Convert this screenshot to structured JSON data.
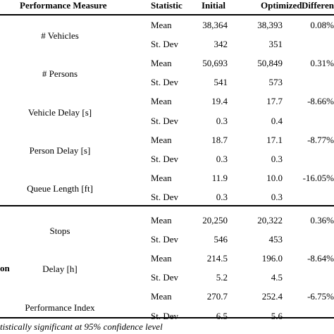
{
  "table": {
    "headers": {
      "group": "",
      "measure": "Performance Measure",
      "statistic": "Statistic",
      "initial": "Initial",
      "optimized": "Optimized",
      "difference": "Differen"
    },
    "groups": [
      {
        "label": "",
        "measures": [
          {
            "name": "# Vehicles",
            "rows": [
              {
                "statistic": "Mean",
                "initial": "38,364",
                "optimized": "38,393",
                "difference": "0.08%"
              },
              {
                "statistic": "St. Dev",
                "initial": "342",
                "optimized": "351",
                "difference": ""
              }
            ]
          },
          {
            "name": "# Persons",
            "rows": [
              {
                "statistic": "Mean",
                "initial": "50,693",
                "optimized": "50,849",
                "difference": "0.31%"
              },
              {
                "statistic": "St. Dev",
                "initial": "541",
                "optimized": "573",
                "difference": ""
              }
            ]
          },
          {
            "name": "Vehicle Delay [s]",
            "rows": [
              {
                "statistic": "Mean",
                "initial": "19.4",
                "optimized": "17.7",
                "difference": "-8.66%"
              },
              {
                "statistic": "St. Dev",
                "initial": "0.3",
                "optimized": "0.4",
                "difference": ""
              }
            ]
          },
          {
            "name": "Person Delay [s]",
            "rows": [
              {
                "statistic": "Mean",
                "initial": "18.7",
                "optimized": "17.1",
                "difference": "-8.77%"
              },
              {
                "statistic": "St. Dev",
                "initial": "0.3",
                "optimized": "0.3",
                "difference": ""
              }
            ]
          },
          {
            "name": "Queue Length [ft]",
            "rows": [
              {
                "statistic": "Mean",
                "initial": "11.9",
                "optimized": "10.0",
                "difference": "-16.05%"
              },
              {
                "statistic": "St. Dev",
                "initial": "0.3",
                "optimized": "0.3",
                "difference": ""
              }
            ]
          }
        ]
      },
      {
        "label": "on",
        "measures": [
          {
            "name": "Stops",
            "rows": [
              {
                "statistic": "Mean",
                "initial": "20,250",
                "optimized": "20,322",
                "difference": "0.36%"
              },
              {
                "statistic": "St. Dev",
                "initial": "546",
                "optimized": "453",
                "difference": ""
              }
            ]
          },
          {
            "name": "Delay [h]",
            "rows": [
              {
                "statistic": "Mean",
                "initial": "214.5",
                "optimized": "196.0",
                "difference": "-8.64%"
              },
              {
                "statistic": "St. Dev",
                "initial": "5.2",
                "optimized": "4.5",
                "difference": ""
              }
            ]
          },
          {
            "name": "Performance Index",
            "rows": [
              {
                "statistic": "Mean",
                "initial": "270.7",
                "optimized": "252.4",
                "difference": "-6.75%"
              },
              {
                "statistic": "St. Dev",
                "initial": "6.5",
                "optimized": "5.6",
                "difference": ""
              }
            ]
          }
        ]
      }
    ],
    "footnote": "tistically significant at 95% confidence level"
  }
}
